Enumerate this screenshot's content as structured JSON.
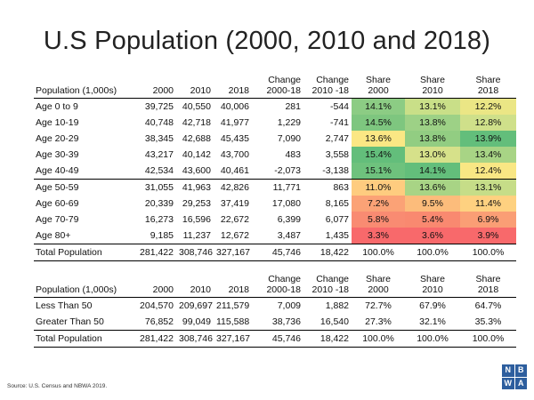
{
  "title": "U.S Population (2000, 2010 and 2018)",
  "table1": {
    "headers": [
      "Population (1,000s)",
      "2000",
      "2010",
      "2018",
      "Change\n2000-18",
      "Change\n2010 -18",
      "Share\n2000",
      "Share\n2010",
      "Share\n2018"
    ],
    "rows": [
      {
        "label": "Age 0 to 9",
        "v2000": "39,725",
        "v2010": "40,550",
        "v2018": "40,006",
        "ch1": "281",
        "ch2": "-544",
        "s2000": "14.1%",
        "s2010": "13.1%",
        "s2018": "12.2%",
        "c2000": "#8ccc84",
        "c2010": "#c9df88",
        "c2018": "#ebe685"
      },
      {
        "label": "Age 10-19",
        "v2000": "40,748",
        "v2010": "42,718",
        "v2018": "41,977",
        "ch1": "1,229",
        "ch2": "-741",
        "s2000": "14.5%",
        "s2010": "13.8%",
        "s2018": "12.8%",
        "c2000": "#7ec67f",
        "c2010": "#9dd186",
        "c2018": "#cfe08a"
      },
      {
        "label": "Age 20-29",
        "v2000": "38,345",
        "v2010": "42,688",
        "v2018": "45,435",
        "ch1": "7,090",
        "ch2": "2,747",
        "s2000": "13.6%",
        "s2010": "13.8%",
        "s2018": "13.9%",
        "c2000": "#fbe784",
        "c2010": "#92cd82",
        "c2018": "#63be7b"
      },
      {
        "label": "Age 30-39",
        "v2000": "43,217",
        "v2010": "40,142",
        "v2018": "43,700",
        "ch1": "483",
        "ch2": "3,558",
        "s2000": "15.4%",
        "s2010": "13.0%",
        "s2018": "13.4%",
        "c2000": "#63be7b",
        "c2010": "#d6e18a",
        "c2018": "#a8d485"
      },
      {
        "label": "Age 40-49",
        "v2000": "42,534",
        "v2010": "43,600",
        "v2018": "40,461",
        "ch1": "-2,073",
        "ch2": "-3,138",
        "s2000": "15.1%",
        "s2010": "14.1%",
        "s2018": "12.4%",
        "c2000": "#6ec27d",
        "c2010": "#63be7b",
        "c2018": "#f9e784"
      },
      {
        "label": "Age 50-59",
        "v2000": "31,055",
        "v2010": "41,963",
        "v2018": "42,826",
        "ch1": "11,771",
        "ch2": "863",
        "s2000": "11.0%",
        "s2010": "13.6%",
        "s2018": "13.1%",
        "c2000": "#fecc7f",
        "c2010": "#a8d485",
        "c2018": "#c6dd88"
      },
      {
        "label": "Age 60-69",
        "v2000": "20,339",
        "v2010": "29,253",
        "v2018": "37,419",
        "ch1": "17,080",
        "ch2": "8,165",
        "s2000": "7.2%",
        "s2010": "9.5%",
        "s2018": "11.4%",
        "c2000": "#fba276",
        "c2010": "#fcbc7b",
        "c2018": "#fed180"
      },
      {
        "label": "Age 70-79",
        "v2000": "16,273",
        "v2010": "16,596",
        "v2018": "22,672",
        "ch1": "6,399",
        "ch2": "6,077",
        "s2000": "5.8%",
        "s2010": "5.4%",
        "s2018": "6.9%",
        "c2000": "#f98b72",
        "c2010": "#f98970",
        "c2018": "#fa9e75"
      },
      {
        "label": "Age 80+",
        "v2000": "9,185",
        "v2010": "11,237",
        "v2018": "12,672",
        "ch1": "3,487",
        "ch2": "1,435",
        "s2000": "3.3%",
        "s2010": "3.6%",
        "s2018": "3.9%",
        "c2000": "#f8696b",
        "c2010": "#f8696b",
        "c2018": "#f8696b"
      }
    ],
    "total": {
      "label": "Total Population",
      "v2000": "281,422",
      "v2010": "308,746",
      "v2018": "327,167",
      "ch1": "45,746",
      "ch2": "18,422",
      "s2000": "100.0%",
      "s2010": "100.0%",
      "s2018": "100.0%"
    }
  },
  "table2": {
    "headers": [
      "Population (1,000s)",
      "2000",
      "2010",
      "2018",
      "Change\n2000-18",
      "Change\n2010 -18",
      "Share\n2000",
      "Share\n2010",
      "Share\n2018"
    ],
    "rows": [
      {
        "label": "Less Than 50",
        "v2000": "204,570",
        "v2010": "209,697",
        "v2018": "211,579",
        "ch1": "7,009",
        "ch2": "1,882",
        "s2000": "72.7%",
        "s2010": "67.9%",
        "s2018": "64.7%"
      },
      {
        "label": "Greater Than 50",
        "v2000": "76,852",
        "v2010": "99,049",
        "v2018": "115,588",
        "ch1": "38,736",
        "ch2": "16,540",
        "s2000": "27.3%",
        "s2010": "32.1%",
        "s2018": "35.3%"
      }
    ],
    "total": {
      "label": "Total Population",
      "v2000": "281,422",
      "v2010": "308,746",
      "v2018": "327,167",
      "ch1": "45,746",
      "ch2": "18,422",
      "s2000": "100.0%",
      "s2010": "100.0%",
      "s2018": "100.0%"
    }
  },
  "source": "Source: U.S. Census and NBWA 2019.",
  "logo": {
    "letters": [
      "N",
      "B",
      "W",
      "A"
    ],
    "color": "#2d5e9e"
  }
}
